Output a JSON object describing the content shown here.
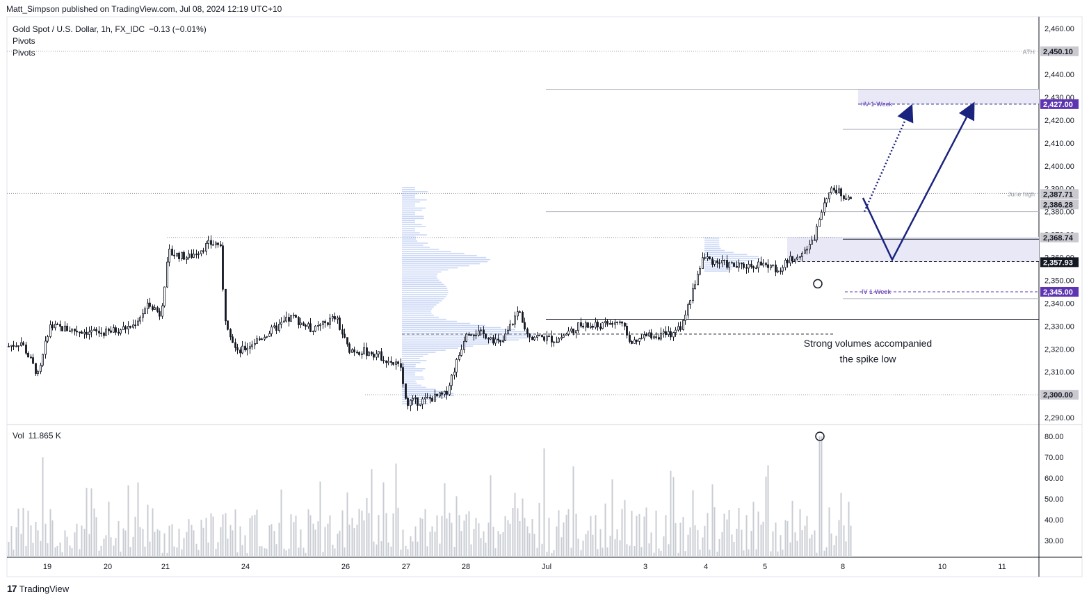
{
  "header": {
    "publisher_line": "Matt_Simpson published on TradingView.com, Jul 08, 2024 12:19 UTC+10"
  },
  "legend": {
    "symbol": "Gold Spot / U.S. Dollar, 1h, FX_IDC",
    "change": "−0.13 (−0.01%)",
    "indicators": [
      "Pivots",
      "Pivots"
    ]
  },
  "volume_legend": {
    "label": "Vol",
    "value": "11.865 K"
  },
  "branding": {
    "label": "TradingView"
  },
  "colors": {
    "candle": "#131722",
    "volume_bar": "#c9ccd3",
    "volume_profile": "#9db4ef",
    "zone_fill": "#e8e8f7",
    "arrow": "#1a237e",
    "badge_purple": "#5e35b1",
    "badge_gray": "#c9c9cf",
    "badge_dark": "#131722"
  },
  "chart_data": {
    "type": "candlestick",
    "price_axis": {
      "range": [
        2287,
        2464
      ],
      "ticks": [
        "2,460.00",
        "2,450.00",
        "2,440.00",
        "2,430.00",
        "2,420.00",
        "2,410.00",
        "2,400.00",
        "2,390.00",
        "2,380.00",
        "2,370.00",
        "2,360.00",
        "2,350.00",
        "2,340.00",
        "2,330.00",
        "2,320.00",
        "2,310.00",
        "2,300.00",
        "2,290.00"
      ],
      "tick_values": [
        2460,
        2450,
        2440,
        2430,
        2420,
        2410,
        2400,
        2390,
        2380,
        2370,
        2360,
        2350,
        2340,
        2330,
        2320,
        2310,
        2300,
        2290
      ]
    },
    "volume_axis": {
      "range": [
        22,
        84
      ],
      "ticks": [
        "80.00",
        "70.00",
        "60.00",
        "50.00",
        "40.00",
        "30.00"
      ],
      "tick_values": [
        80,
        70,
        60,
        50,
        40,
        30
      ]
    },
    "time_axis": {
      "labels": [
        "19",
        "20",
        "21",
        "24",
        "26",
        "27",
        "28",
        "Jul",
        "3",
        "4",
        "5",
        "8",
        "10",
        "11"
      ]
    },
    "price_badges": [
      {
        "label": "2,450.10",
        "value": 2450.1,
        "style": "gray"
      },
      {
        "label": "2,427.00",
        "value": 2427.0,
        "style": "purple"
      },
      {
        "label": "2,387.71",
        "value": 2387.71,
        "style": "gray"
      },
      {
        "label": "2,386.28",
        "value": 2386.28,
        "style": "gray"
      },
      {
        "label": "2,368.74",
        "value": 2368.74,
        "style": "gray"
      },
      {
        "label": "2,357.93",
        "value": 2357.93,
        "style": "dark"
      },
      {
        "label": "2,345.00",
        "value": 2345.0,
        "style": "purple"
      },
      {
        "label": "2,300.00",
        "value": 2300.0,
        "style": "gray"
      }
    ],
    "level_labels": [
      {
        "text": "ATH",
        "value": 2450.1
      },
      {
        "text": "June high",
        "value": 2388.0
      },
      {
        "text": "+IV 1-Week",
        "value": 2427.0
      },
      {
        "text": "-IV 1-Week",
        "value": 2345.0
      }
    ],
    "annotations": [
      {
        "text": "Strong volumes accompanied"
      },
      {
        "text": "the spike low"
      }
    ],
    "key_points": [
      {
        "label": "June 21-23 high",
        "value": 2368.74
      },
      {
        "label": "June 27 low",
        "value": 2293
      },
      {
        "label": "Jul 5 spike low",
        "value": 2349
      },
      {
        "label": "Jul 8 high",
        "value": 2392
      },
      {
        "label": "last price",
        "value": 2386.28
      }
    ]
  }
}
